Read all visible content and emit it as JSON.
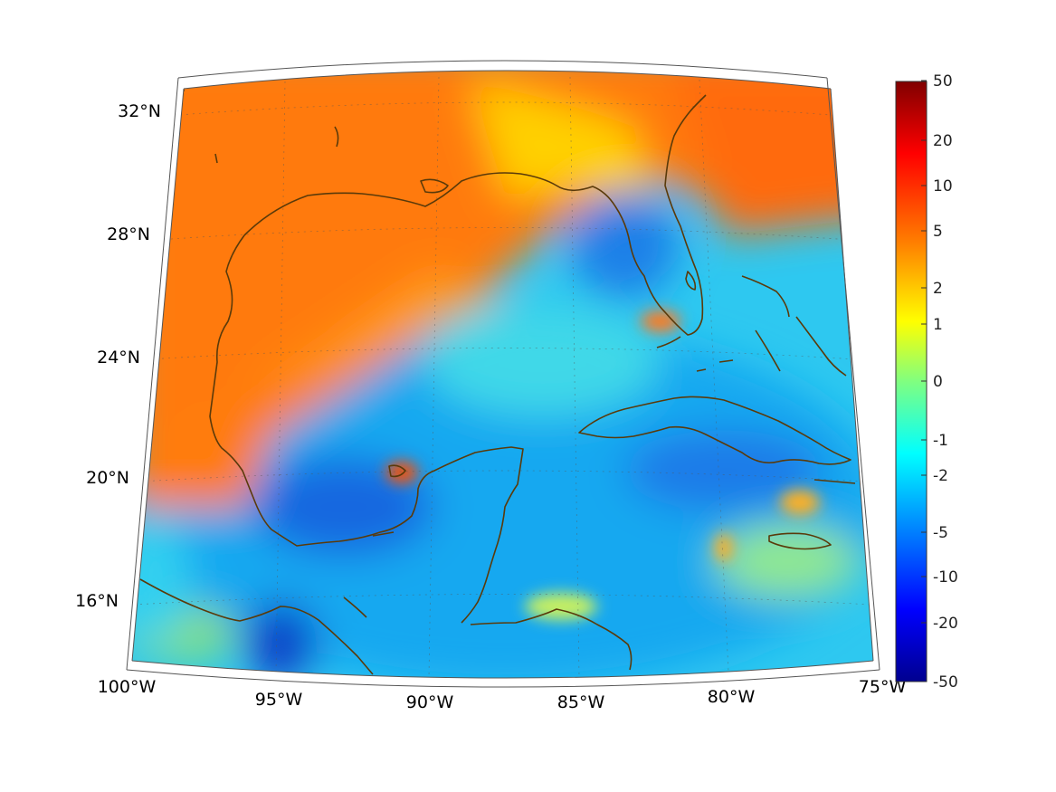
{
  "map": {
    "longitude_labels": [
      "100°W",
      "95°W",
      "90°W",
      "85°W",
      "80°W",
      "75°W"
    ],
    "latitude_labels": [
      "32°N",
      "28°N",
      "24°N",
      "20°N",
      "16°N"
    ],
    "extent": {
      "west": "100°W",
      "east": "75°W",
      "south": "~14°N",
      "north": "~33°N"
    },
    "coastline_color": "#5a3a0a"
  },
  "colorbar": {
    "tick_labels": [
      "50",
      "20",
      "10",
      "5",
      "2",
      "1",
      "0",
      "-1",
      "-2",
      "-5",
      "-10",
      "-20",
      "-50"
    ],
    "colormap": "jet",
    "colors": [
      "#800000",
      "#ff0000",
      "#ff8000",
      "#ffff00",
      "#80ff80",
      "#00ffff",
      "#0080ff",
      "#0000ff",
      "#00008f"
    ]
  }
}
